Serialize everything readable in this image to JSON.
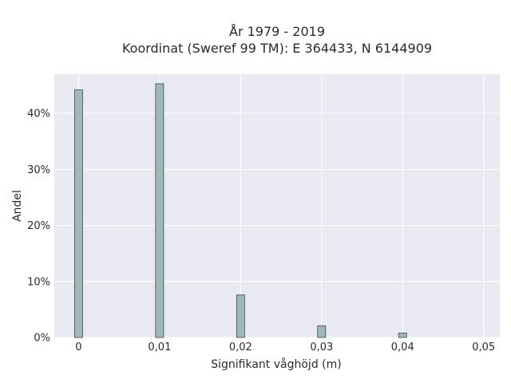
{
  "chart_data": {
    "type": "bar",
    "title": "År 1979 - 2019",
    "subtitle": "Koordinat (Sweref 99 TM): E 364433, N 6144909",
    "xlabel": "Signifikant våghöjd (m)",
    "ylabel": "Andel",
    "x": [
      0,
      0.01,
      0.02,
      0.03,
      0.04
    ],
    "values": [
      44.2,
      45.3,
      7.6,
      2.1,
      0.8
    ],
    "xlim": [
      -0.003,
      0.052
    ],
    "ylim": [
      0,
      47
    ],
    "x_ticks": [
      0,
      0.01,
      0.02,
      0.03,
      0.04,
      0.05
    ],
    "x_tick_labels": [
      "0",
      "0,01",
      "0,02",
      "0,03",
      "0,04",
      "0,05"
    ],
    "y_ticks": [
      0,
      10,
      20,
      30,
      40
    ],
    "y_tick_labels": [
      "0%",
      "10%",
      "20%",
      "30%",
      "40%"
    ],
    "grid": true,
    "colors": {
      "bar_fill": "#9fb8b8",
      "bar_stroke": "#3d4a4a",
      "plot_bg": "#e9e9f1",
      "grid": "#ffffff"
    }
  }
}
